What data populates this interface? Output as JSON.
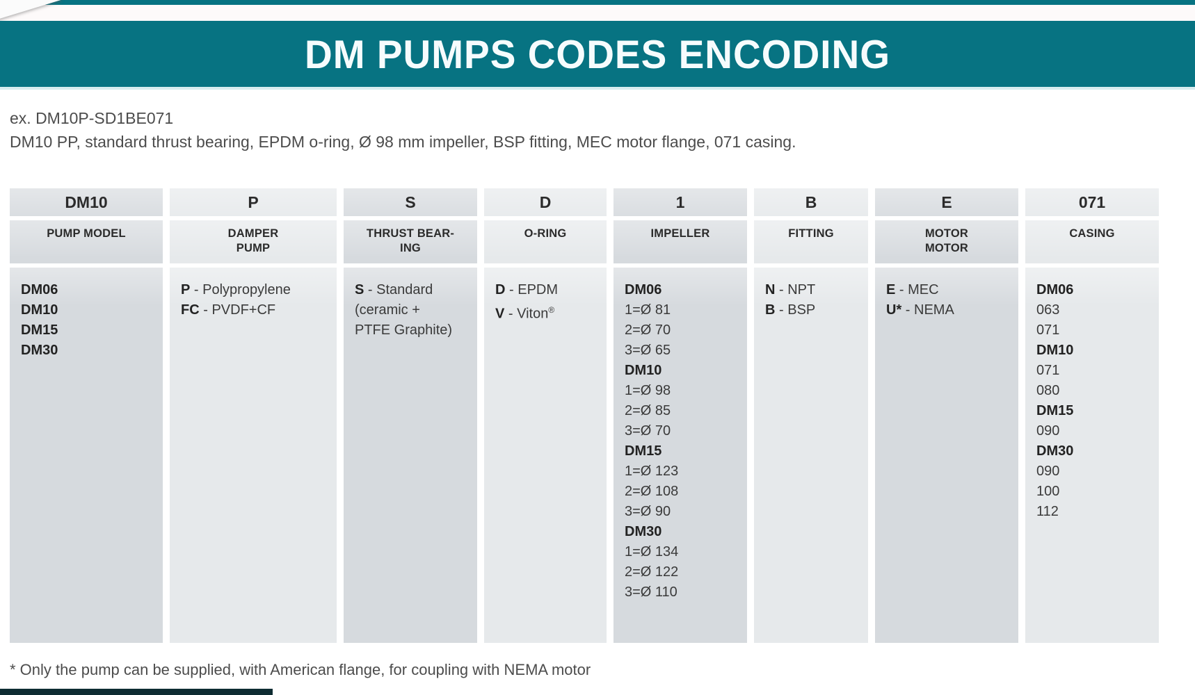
{
  "banner": {
    "title": "DM PUMPS CODES ENCODING"
  },
  "example": {
    "line1": "ex. DM10P-SD1BE071",
    "line2": "DM10 PP, standard thrust bearing, EPDM o-ring, Ø 98 mm impeller, BSP fitting, MEC motor flange, 071 casing."
  },
  "footnote": "* Only the pump can be supplied, with American flange, for coupling with NEMA motor",
  "colors": {
    "banner_teal": "#077382",
    "cell_dark": "#d6dade",
    "cell_light": "#e6e9eb",
    "text_dark": "#2b2b2b"
  },
  "table": {
    "entry_separator": " - ",
    "columns": [
      {
        "code": "DM10",
        "label": "PUMP MODEL",
        "entries": [
          {
            "bold": "DM06"
          },
          {
            "bold": "DM10"
          },
          {
            "bold": "DM15"
          },
          {
            "bold": "DM30"
          }
        ]
      },
      {
        "code": "P",
        "label": "DAMPER\nPUMP",
        "entries": [
          {
            "bold": "P",
            "text": "Polypropylene"
          },
          {
            "bold": "FC",
            "text": "PVDF+CF"
          }
        ]
      },
      {
        "code": "S",
        "label": "THRUST BEAR-\nING",
        "entries": [
          {
            "bold": "S",
            "text": "Standard"
          },
          {
            "text": "(ceramic +"
          },
          {
            "text": "PTFE Graphite)"
          }
        ]
      },
      {
        "code": "D",
        "label": "O-RING",
        "entries": [
          {
            "bold": "D",
            "text": "EPDM"
          },
          {
            "bold": "V",
            "text": "Viton",
            "sup": "®"
          }
        ]
      },
      {
        "code": "1",
        "label": "IMPELLER",
        "entries": [
          {
            "bold": "DM06"
          },
          {
            "text": "1=Ø 81"
          },
          {
            "text": "2=Ø 70"
          },
          {
            "text": "3=Ø 65"
          },
          {
            "bold": "DM10"
          },
          {
            "text": "1=Ø 98"
          },
          {
            "text": "2=Ø 85"
          },
          {
            "text": "3=Ø 70"
          },
          {
            "bold": "DM15"
          },
          {
            "text": "1=Ø 123"
          },
          {
            "text": "2=Ø 108"
          },
          {
            "text": "3=Ø 90"
          },
          {
            "bold": "DM30"
          },
          {
            "text": "1=Ø 134"
          },
          {
            "text": "2=Ø 122"
          },
          {
            "text": "3=Ø 110"
          }
        ]
      },
      {
        "code": "B",
        "label": "FITTING",
        "entries": [
          {
            "bold": "N",
            "text": "NPT"
          },
          {
            "bold": "B",
            "text": "BSP"
          }
        ]
      },
      {
        "code": "E",
        "label": "MOTOR\nMOTOR",
        "entries": [
          {
            "bold": "E",
            "text": "MEC"
          },
          {
            "bold": "U*",
            "text": "NEMA"
          }
        ]
      },
      {
        "code": "071",
        "label": "CASING",
        "entries": [
          {
            "bold": "DM06"
          },
          {
            "text": "063"
          },
          {
            "text": "071"
          },
          {
            "bold": "DM10"
          },
          {
            "text": "071"
          },
          {
            "text": "080"
          },
          {
            "bold": "DM15"
          },
          {
            "text": "090"
          },
          {
            "bold": "DM30"
          },
          {
            "text": "090"
          },
          {
            "text": "100"
          },
          {
            "text": "112"
          }
        ]
      }
    ]
  }
}
